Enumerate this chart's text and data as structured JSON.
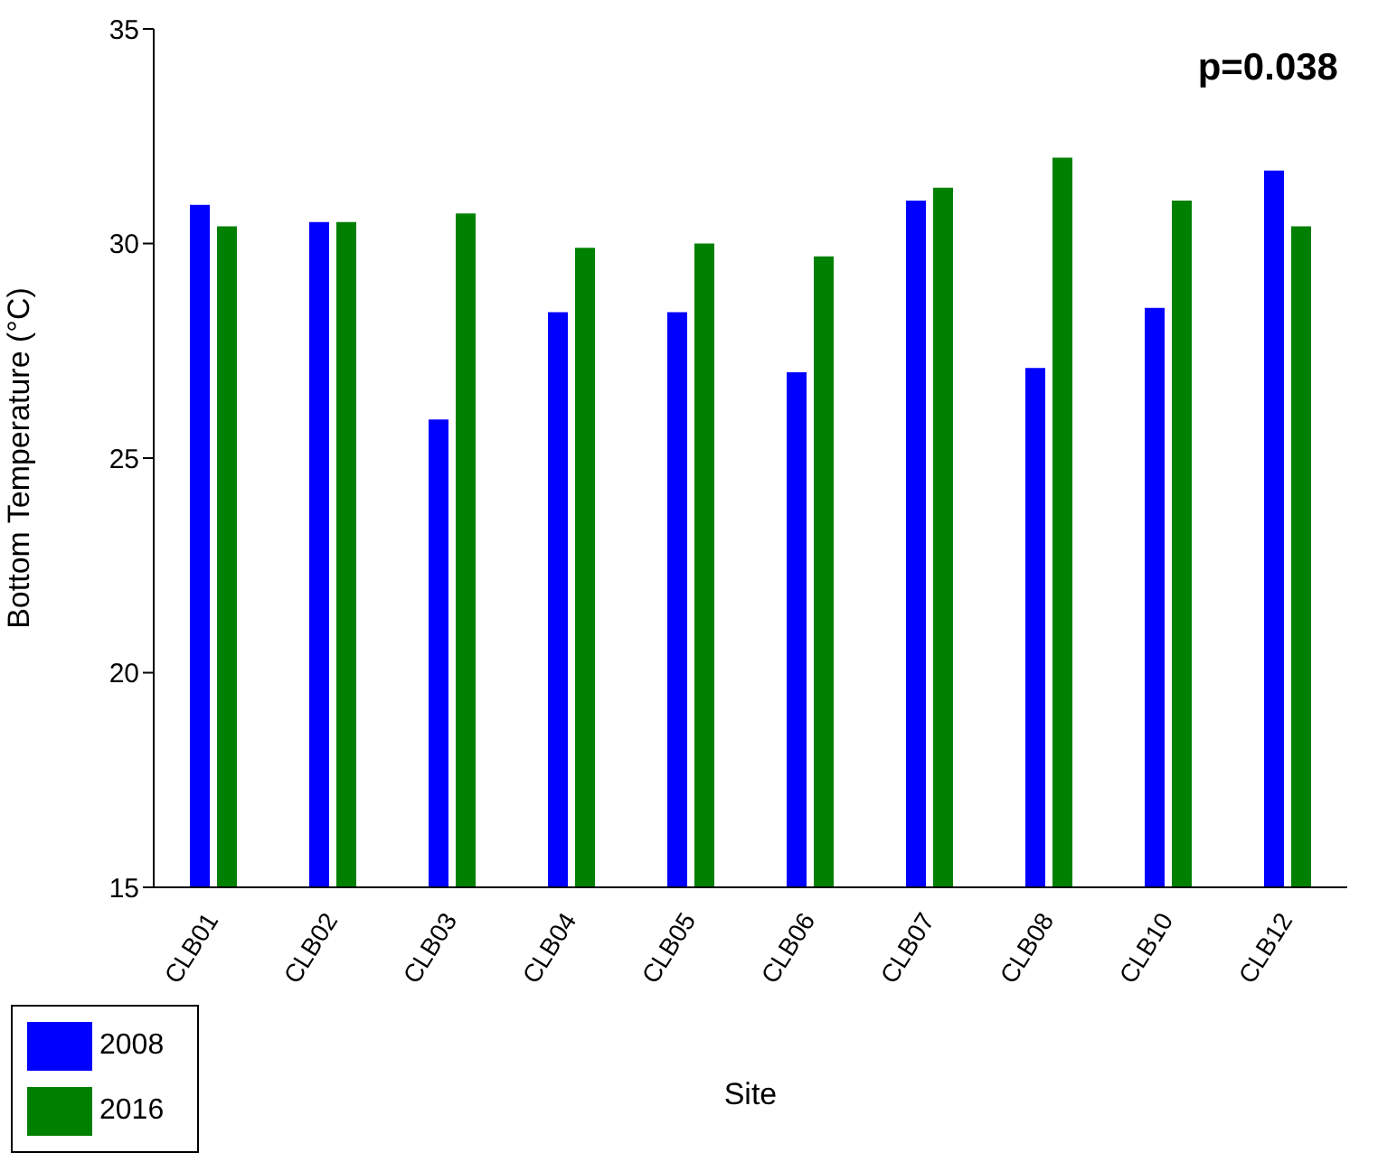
{
  "chart_data": {
    "type": "bar",
    "xlabel": "Site",
    "ylabel": "Bottom Temperature (°C)",
    "categories": [
      "CLB01",
      "CLB02",
      "CLB03",
      "CLB04",
      "CLB05",
      "CLB06",
      "CLB07",
      "CLB08",
      "CLB10",
      "CLB12"
    ],
    "series": [
      {
        "name": "2008",
        "color": "#0000ff",
        "values": [
          30.9,
          30.5,
          25.9,
          28.4,
          28.4,
          27.0,
          31.0,
          27.1,
          28.5,
          31.7
        ]
      },
      {
        "name": "2016",
        "color": "#008000",
        "values": [
          30.4,
          30.5,
          30.7,
          29.9,
          30.0,
          29.7,
          31.3,
          32.0,
          31.0,
          30.4
        ]
      }
    ],
    "ylim": [
      15,
      35
    ],
    "yticks": [
      15,
      20,
      25,
      30,
      35
    ],
    "grid": false,
    "legend": "bottom left",
    "annotations": [
      "p=0.038"
    ]
  }
}
